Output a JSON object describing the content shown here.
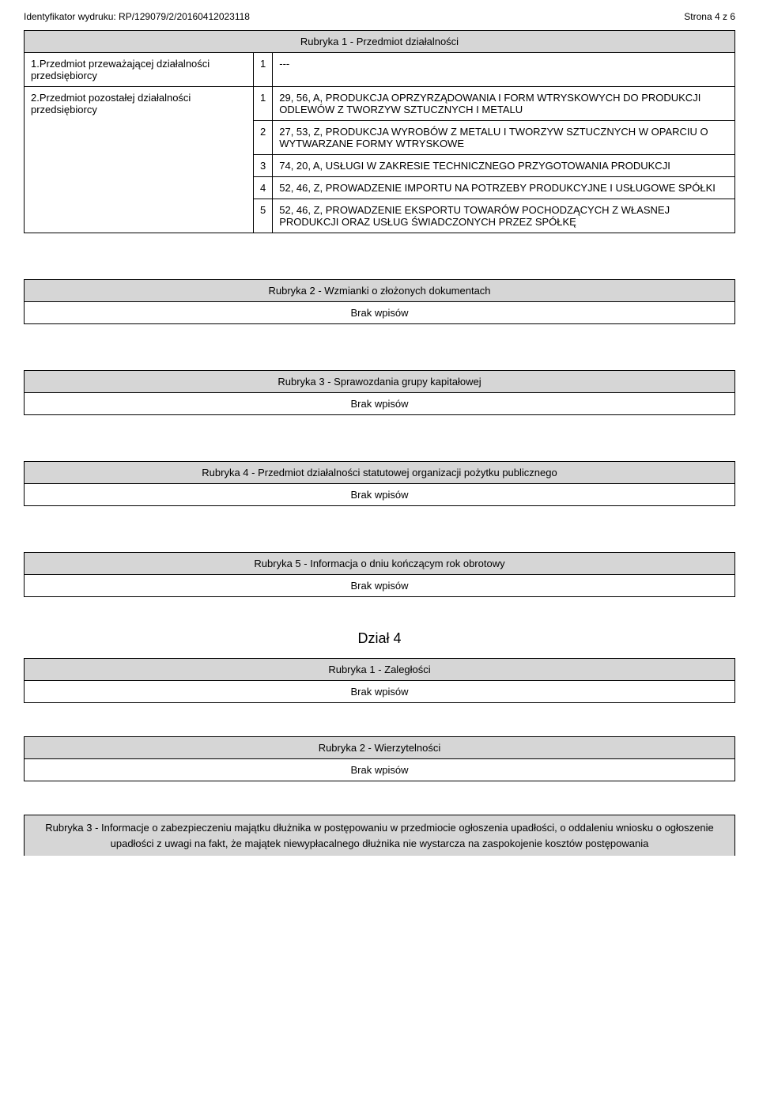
{
  "header": {
    "left": "Identyfikator wydruku: RP/129079/2/20160412023118",
    "right": "Strona 4 z 6"
  },
  "rubryka1": {
    "title": "Rubryka 1 - Przedmiot działalności",
    "row1": {
      "label": "1.Przedmiot przeważającej działalności przedsiębiorcy",
      "num": "1",
      "value": "---"
    },
    "row2": {
      "label": "2.Przedmiot pozostałej działalności przedsiębiorcy",
      "items": [
        {
          "num": "1",
          "value": "29, 56, A, PRODUKCJA OPRZYRZĄDOWANIA I FORM WTRYSKOWYCH DO PRODUKCJI ODLEWÓW Z TWORZYW SZTUCZNYCH I METALU"
        },
        {
          "num": "2",
          "value": "27, 53, Z, PRODUKCJA WYROBÓW Z METALU I TWORZYW SZTUCZNYCH W OPARCIU O WYTWARZANE FORMY WTRYSKOWE"
        },
        {
          "num": "3",
          "value": "74, 20, A, USŁUGI W ZAKRESIE TECHNICZNEGO PRZYGOTOWANIA PRODUKCJI"
        },
        {
          "num": "4",
          "value": "52, 46, Z, PROWADZENIE IMPORTU NA POTRZEBY PRODUKCYJNE I USŁUGOWE SPÓŁKI"
        },
        {
          "num": "5",
          "value": "52, 46, Z, PROWADZENIE EKSPORTU TOWARÓW POCHODZĄCYCH Z WŁASNEJ PRODUKCJI ORAZ USŁUG ŚWIADCZONYCH PRZEZ SPÓŁKĘ"
        }
      ]
    }
  },
  "brak": "Brak wpisów",
  "rubryka2": {
    "title": "Rubryka 2 - Wzmianki o złożonych dokumentach"
  },
  "rubryka3": {
    "title": "Rubryka 3 - Sprawozdania grupy kapitałowej"
  },
  "rubryka4": {
    "title": "Rubryka 4 - Przedmiot działalności statutowej organizacji pożytku publicznego"
  },
  "rubryka5": {
    "title": "Rubryka 5 - Informacja o dniu kończącym rok obrotowy"
  },
  "dzial4": {
    "title": "Dział 4",
    "r1": {
      "title": "Rubryka 1 - Zaległości"
    },
    "r2": {
      "title": "Rubryka 2 - Wierzytelności"
    },
    "r3": {
      "title": "Rubryka 3 - Informacje o zabezpieczeniu majątku dłużnika w postępowaniu w przedmiocie ogłoszenia upadłości, o oddaleniu wniosku o ogłoszenie upadłości z uwagi na fakt, że majątek niewypłacalnego dłużnika nie wystarcza na zaspokojenie kosztów postępowania"
    }
  }
}
